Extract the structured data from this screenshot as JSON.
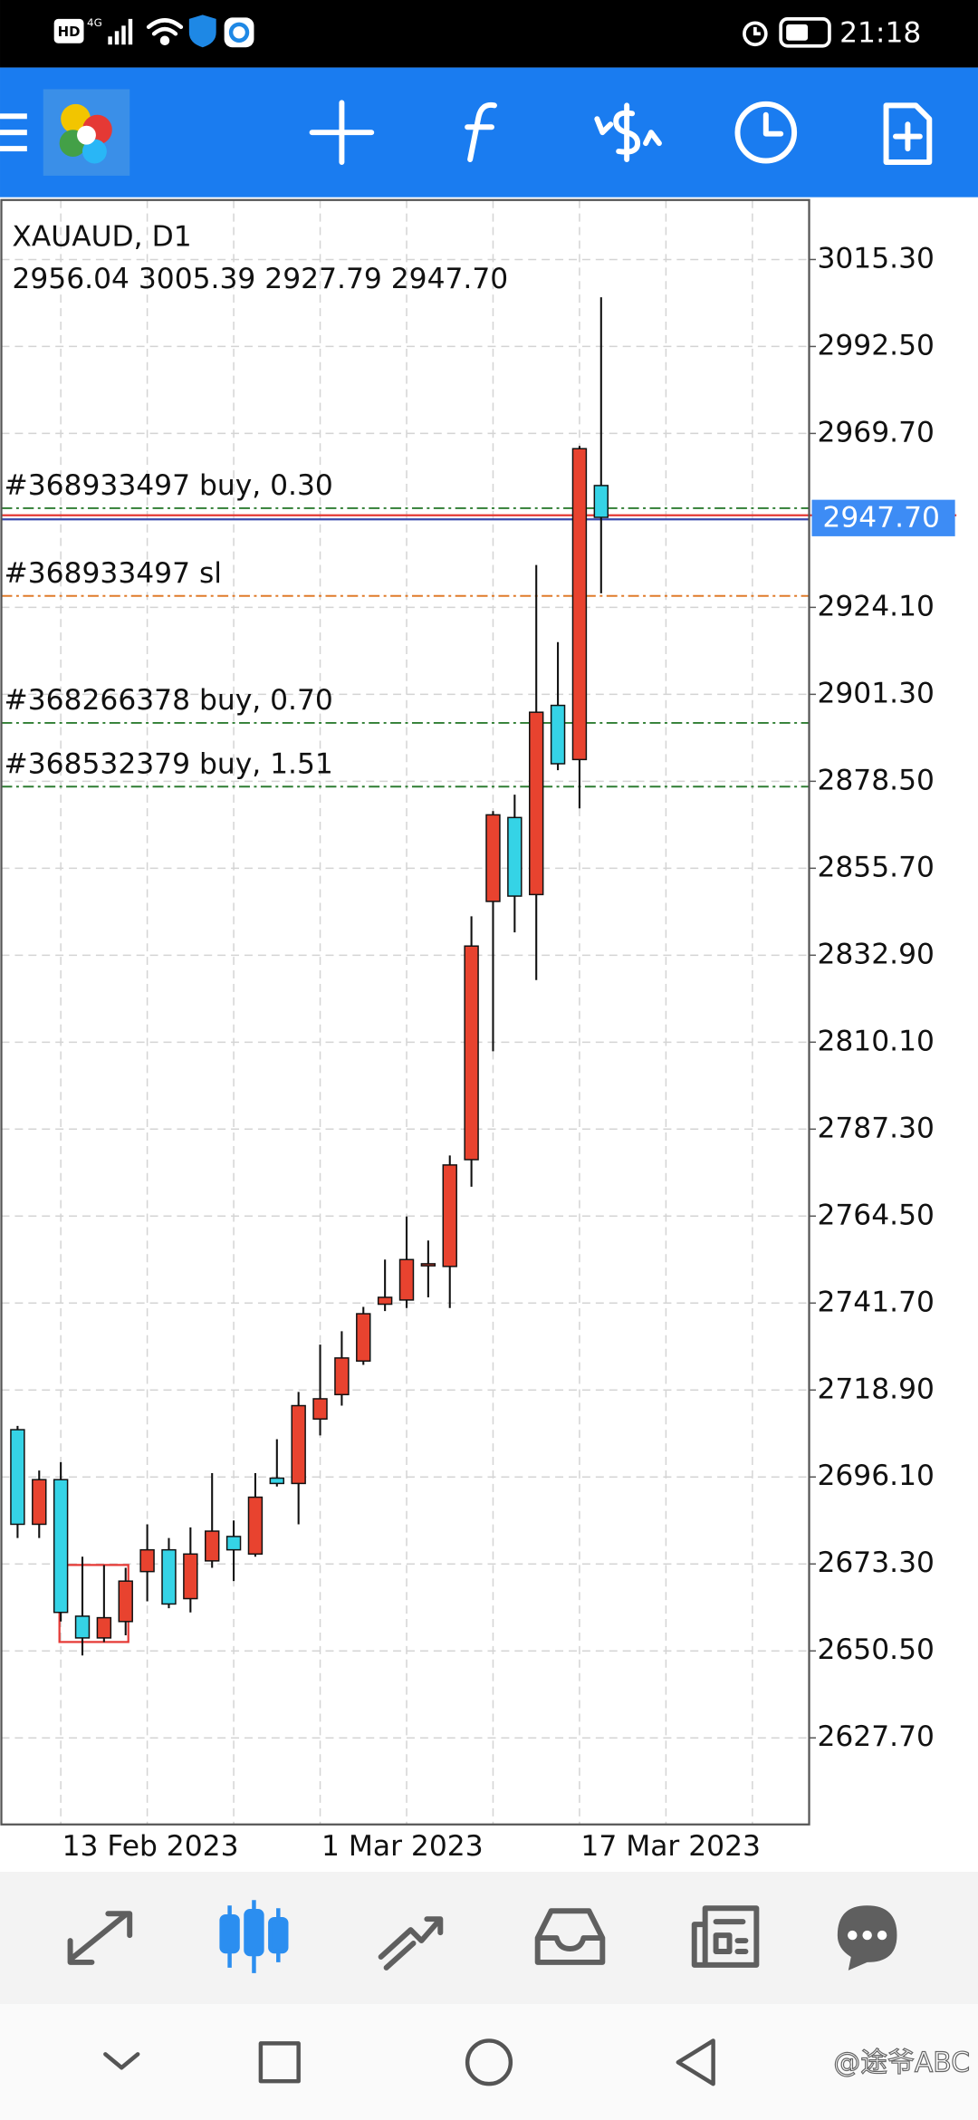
{
  "status_bar": {
    "indicators": [
      "HD",
      "4G"
    ],
    "time": "21:18"
  },
  "watermark": "@途爷ABC",
  "chart_data": {
    "type": "candlestick",
    "title": "XAUAUD, D1",
    "ohlc_label": "2956.04 3005.39 2927.79 2947.70",
    "up_color": "#e8432f",
    "down_color": "#35d3e6",
    "grid": true,
    "categories": [
      null,
      null,
      "13 Feb 2023",
      null,
      null,
      null,
      null,
      null,
      null,
      null,
      null,
      null,
      null,
      null,
      "1 Mar 2023",
      null,
      null,
      null,
      null,
      null,
      null,
      null,
      null,
      null,
      null,
      null,
      "17 Mar 2023",
      null
    ],
    "open": [
      2708.5,
      2683.7,
      2695.4,
      2659.6,
      2653.9,
      2658.2,
      2671.3,
      2677.0,
      2664.2,
      2674.1,
      2680.5,
      2675.9,
      2695.8,
      2694.4,
      2711.3,
      2717.7,
      2726.5,
      2741.4,
      2742.5,
      2752.0,
      2751.3,
      2779.3,
      2847.0,
      2869.0,
      2848.8,
      2898.4,
      2884.2,
      2956.04
    ],
    "high": [
      2709.5,
      2697.8,
      2700.0,
      2675.2,
      2673.0,
      2672.3,
      2683.7,
      2680.1,
      2682.9,
      2697.1,
      2684.7,
      2697.1,
      2706.0,
      2718.4,
      2730.8,
      2734.3,
      2740.7,
      2753.1,
      2764.4,
      2758.1,
      2780.4,
      2843.1,
      2870.7,
      2875.0,
      2935.2,
      2915.0,
      2966.4,
      3005.39
    ],
    "low": [
      2680.1,
      2680.1,
      2658.2,
      2649.3,
      2652.8,
      2654.6,
      2663.5,
      2661.7,
      2660.6,
      2672.3,
      2668.8,
      2675.2,
      2693.6,
      2683.7,
      2707.0,
      2714.8,
      2725.5,
      2739.6,
      2740.4,
      2743.2,
      2740.4,
      2772.2,
      2807.7,
      2838.9,
      2826.4,
      2881.4,
      2871.4,
      2927.79
    ],
    "close": [
      2683.7,
      2695.4,
      2660.6,
      2653.9,
      2659.2,
      2668.8,
      2677.0,
      2662.8,
      2675.9,
      2681.9,
      2677.0,
      2690.8,
      2694.4,
      2714.8,
      2716.6,
      2727.3,
      2738.9,
      2743.2,
      2753.1,
      2752.0,
      2777.9,
      2835.3,
      2869.7,
      2848.4,
      2896.6,
      2883.1,
      2965.7,
      2947.7
    ],
    "ylim": [
      2605.0,
      3030.9
    ],
    "yticks": [
      {
        "value": 3015.3,
        "label": "3015.30"
      },
      {
        "value": 2992.5,
        "label": "2992.50"
      },
      {
        "value": 2969.7,
        "label": "2969.70"
      },
      {
        "value": 2924.1,
        "label": "2924.10"
      },
      {
        "value": 2901.3,
        "label": "2901.30"
      },
      {
        "value": 2878.5,
        "label": "2878.50"
      },
      {
        "value": 2855.7,
        "label": "2855.70"
      },
      {
        "value": 2832.9,
        "label": "2832.90"
      },
      {
        "value": 2810.1,
        "label": "2810.10"
      },
      {
        "value": 2787.3,
        "label": "2787.30"
      },
      {
        "value": 2764.5,
        "label": "2764.50"
      },
      {
        "value": 2741.7,
        "label": "2741.70"
      },
      {
        "value": 2718.9,
        "label": "2718.90"
      },
      {
        "value": 2696.1,
        "label": "2696.10"
      },
      {
        "value": 2673.3,
        "label": "2673.30"
      },
      {
        "value": 2650.5,
        "label": "2650.50"
      },
      {
        "value": 2627.7,
        "label": "2627.70"
      }
    ],
    "current_price": {
      "value": 2947.7,
      "label": "2947.70"
    },
    "orders": [
      {
        "label": "#368933497 buy, 0.30",
        "value": 2950.1,
        "color": "#2e7d32"
      },
      {
        "label": "#368933497 sl",
        "value": 2927.1,
        "color": "#e07b2a"
      },
      {
        "label": "#368266378 buy, 0.70",
        "value": 2893.8,
        "color": "#2e7d32"
      },
      {
        "label": "#368532379 buy, 1.51",
        "value": 2877.1,
        "color": "#2e7d32"
      }
    ]
  }
}
